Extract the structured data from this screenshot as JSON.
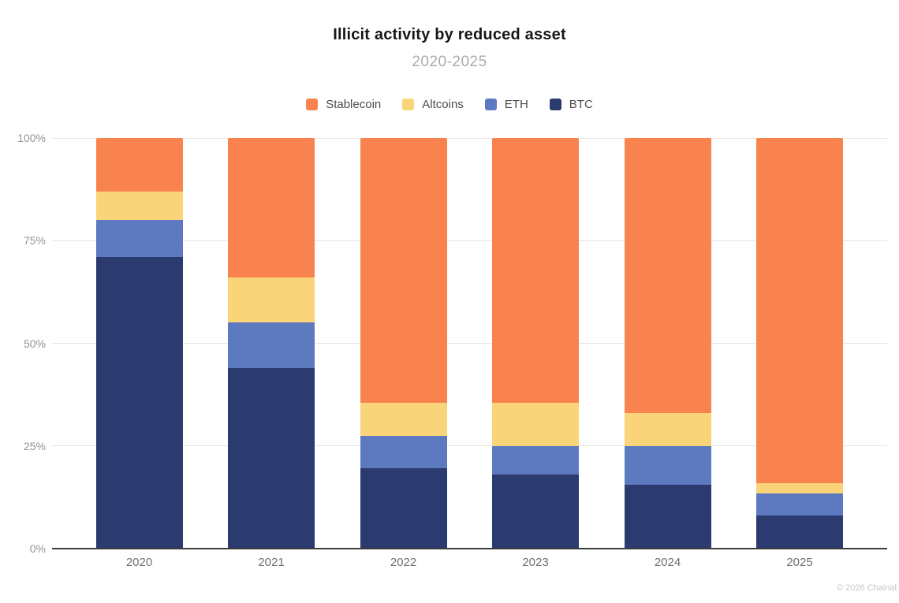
{
  "title": "Illicit activity by reduced asset",
  "subtitle": "2020-2025",
  "footer": "© 2026 Chainal",
  "legend": [
    {
      "label": "Stablecoin",
      "color": "#f8834e"
    },
    {
      "label": "Altcoins",
      "color": "#fad478"
    },
    {
      "label": "ETH",
      "color": "#5d79bf"
    },
    {
      "label": "BTC",
      "color": "#2b3a6f"
    }
  ],
  "y_axis": {
    "ticks": [
      {
        "label": "100%",
        "value": 100
      },
      {
        "label": "75%",
        "value": 75
      },
      {
        "label": "50%",
        "value": 50
      },
      {
        "label": "25%",
        "value": 25
      },
      {
        "label": "0%",
        "value": 0
      }
    ]
  },
  "chart_data": {
    "type": "bar",
    "stacked": true,
    "normalized": "percent",
    "title": "Illicit activity by reduced asset",
    "subtitle": "2020-2025",
    "categories": [
      "2020",
      "2021",
      "2022",
      "2023",
      "2024",
      "2025"
    ],
    "series": [
      {
        "name": "BTC",
        "color": "#2b3a6f",
        "values": [
          71,
          44,
          19.5,
          18,
          15.5,
          8
        ]
      },
      {
        "name": "ETH",
        "color": "#5d79bf",
        "values": [
          9,
          11,
          8,
          7,
          9.5,
          5.5
        ]
      },
      {
        "name": "Altcoins",
        "color": "#fad478",
        "values": [
          7,
          11,
          8,
          10.5,
          8,
          2.5
        ]
      },
      {
        "name": "Stablecoin",
        "color": "#f8834e",
        "values": [
          13,
          34,
          64.5,
          64.5,
          67,
          84
        ]
      }
    ],
    "stack_order": "bottom-to-top",
    "xlabel": "",
    "ylabel": "",
    "ylim": [
      0,
      100
    ],
    "grid": true,
    "gridlines_percent": [
      25,
      50,
      75,
      100
    ],
    "legend_position": "top"
  }
}
